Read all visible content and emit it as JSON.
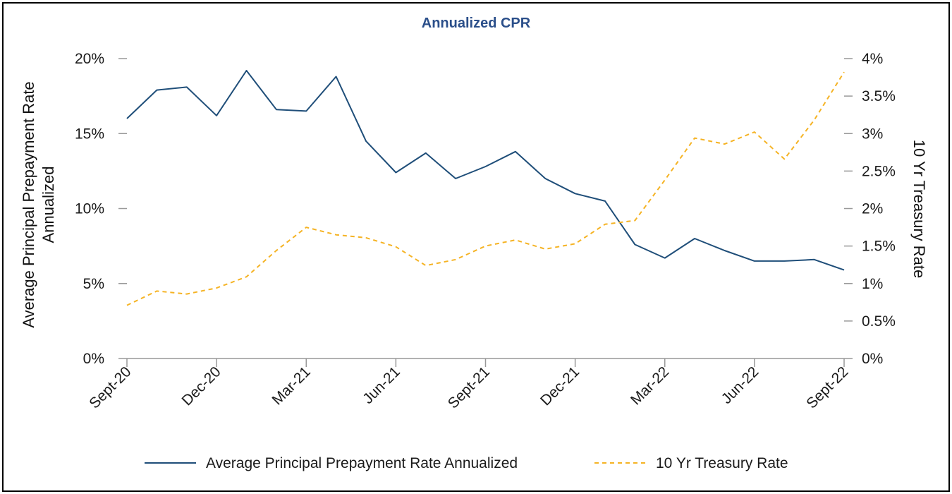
{
  "chart_data": {
    "type": "line",
    "title": "Annualized CPR",
    "ylabel_left": "Average Principal Prepayment Rate Annualized",
    "ylabel_right": "10 Yr Treasury Rate",
    "x": [
      "Sept-20",
      "Oct-20",
      "Nov-20",
      "Dec-20",
      "Jan-21",
      "Feb-21",
      "Mar-21",
      "Apr-21",
      "May-21",
      "Jun-21",
      "Jul-21",
      "Aug-21",
      "Sept-21",
      "Oct-21",
      "Nov-21",
      "Dec-21",
      "Jan-22",
      "Feb-22",
      "Mar-22",
      "Apr-22",
      "May-22",
      "Jun-22",
      "Jul-22",
      "Aug-22",
      "Sept-22"
    ],
    "xtick_labels": [
      "Sept-20",
      "Dec-20",
      "Mar-21",
      "Jun-21",
      "Sept-21",
      "Dec-21",
      "Mar-22",
      "Jun-22",
      "Sept-22"
    ],
    "xtick_indices": [
      0,
      3,
      6,
      9,
      12,
      15,
      18,
      21,
      24
    ],
    "ylim_left": [
      0,
      20
    ],
    "ylim_right": [
      0,
      4
    ],
    "yticks_left": [
      "0%",
      "5%",
      "10%",
      "15%",
      "20%"
    ],
    "yticks_right": [
      "0%",
      "0.5%",
      "1%",
      "1.5%",
      "2%",
      "2.5%",
      "3%",
      "3.5%",
      "4%"
    ],
    "series": [
      {
        "name": "Average Principal Prepayment Rate Annualized",
        "axis": "left",
        "style": "solid",
        "color": "#1f4e79",
        "values": [
          16.0,
          17.9,
          18.1,
          16.2,
          19.2,
          16.6,
          16.5,
          18.8,
          14.5,
          12.4,
          13.7,
          12.0,
          12.8,
          13.8,
          12.0,
          11.0,
          10.5,
          7.6,
          6.7,
          8.0,
          7.2,
          6.5,
          6.5,
          6.6,
          5.9
        ]
      },
      {
        "name": "10 Yr Treasury Rate",
        "axis": "right",
        "style": "dashed",
        "color": "#f5b324",
        "values": [
          0.71,
          0.9,
          0.86,
          0.94,
          1.09,
          1.44,
          1.75,
          1.65,
          1.61,
          1.49,
          1.24,
          1.32,
          1.5,
          1.58,
          1.46,
          1.53,
          1.79,
          1.84,
          2.38,
          2.94,
          2.86,
          3.02,
          2.66,
          3.18,
          3.82
        ]
      }
    ],
    "legend_position": "bottom"
  },
  "colors": {
    "title": "#2b4f8a",
    "axis": "#999999"
  }
}
